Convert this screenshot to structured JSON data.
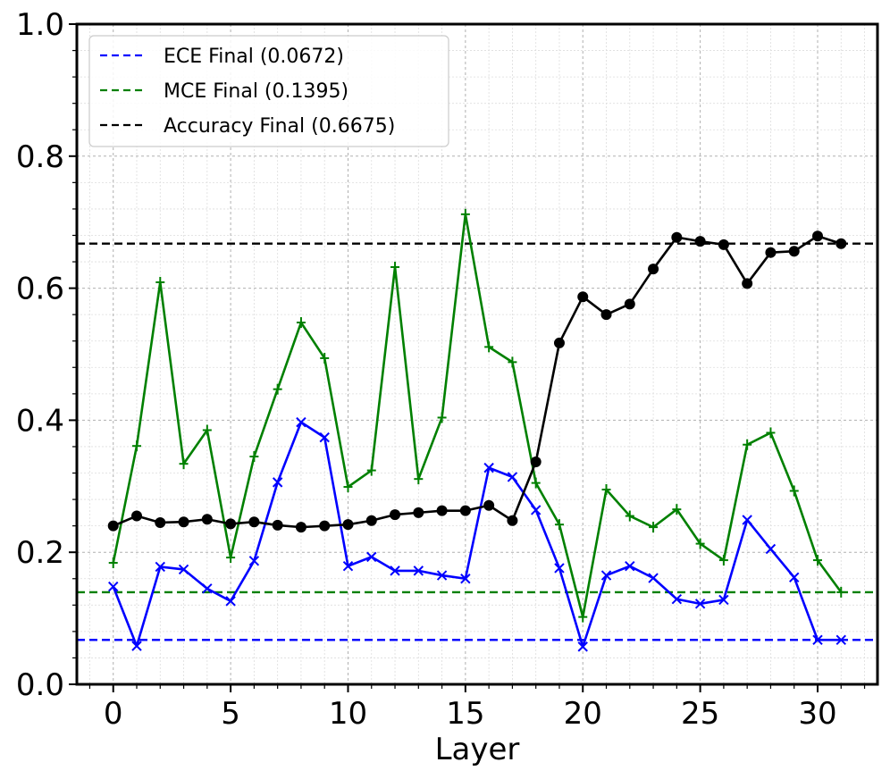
{
  "chart_data": {
    "type": "line",
    "title": "",
    "xlabel": "Layer",
    "ylabel": "",
    "xlim": [
      -1.55,
      32.55
    ],
    "ylim": [
      0.0,
      1.0
    ],
    "x_ticks": [
      0,
      5,
      10,
      15,
      20,
      25,
      30
    ],
    "y_ticks": [
      0.0,
      0.2,
      0.4,
      0.6,
      0.8,
      1.0
    ],
    "y_tick_labels": [
      "0.0",
      "0.2",
      "0.4",
      "0.6",
      "0.8",
      "1.0"
    ],
    "x_tick_labels": [
      "0",
      "5",
      "10",
      "15",
      "20",
      "25",
      "30"
    ],
    "grid": true,
    "legend_position": "top-left",
    "x": [
      0,
      1,
      2,
      3,
      4,
      5,
      6,
      7,
      8,
      9,
      10,
      11,
      12,
      13,
      14,
      15,
      16,
      17,
      18,
      19,
      20,
      21,
      22,
      23,
      24,
      25,
      26,
      27,
      28,
      29,
      30,
      31
    ],
    "series": [
      {
        "key": "ece",
        "color": "#0000ff",
        "marker": "x",
        "values": [
          0.148,
          0.058,
          0.178,
          0.174,
          0.145,
          0.126,
          0.187,
          0.306,
          0.397,
          0.374,
          0.179,
          0.193,
          0.172,
          0.172,
          0.165,
          0.16,
          0.328,
          0.314,
          0.264,
          0.176,
          0.057,
          0.165,
          0.179,
          0.161,
          0.129,
          0.122,
          0.128,
          0.249,
          0.205,
          0.162,
          0.0672,
          0.0672
        ]
      },
      {
        "key": "mce",
        "color": "#008000",
        "marker": "+",
        "values": [
          0.184,
          0.361,
          0.609,
          0.334,
          0.385,
          0.192,
          0.345,
          0.447,
          0.548,
          0.494,
          0.299,
          0.324,
          0.632,
          0.311,
          0.404,
          0.712,
          0.511,
          0.488,
          0.305,
          0.242,
          0.102,
          0.295,
          0.255,
          0.238,
          0.265,
          0.213,
          0.188,
          0.363,
          0.381,
          0.293,
          0.188,
          0.1395
        ]
      },
      {
        "key": "accuracy",
        "color": "#000000",
        "marker": "o",
        "values": [
          0.24,
          0.255,
          0.245,
          0.246,
          0.25,
          0.243,
          0.246,
          0.241,
          0.238,
          0.24,
          0.242,
          0.248,
          0.257,
          0.26,
          0.263,
          0.263,
          0.271,
          0.248,
          0.337,
          0.517,
          0.587,
          0.56,
          0.576,
          0.629,
          0.677,
          0.671,
          0.666,
          0.607,
          0.654,
          0.656,
          0.679,
          0.6675
        ]
      }
    ],
    "reference_lines": [
      {
        "key": "ece_final",
        "label": "ECE Final (0.0672)",
        "value": 0.0672,
        "color": "#0000ff",
        "style": "dashed"
      },
      {
        "key": "mce_final",
        "label": "MCE Final (0.1395)",
        "value": 0.1395,
        "color": "#008000",
        "style": "dashed"
      },
      {
        "key": "acc_final",
        "label": "Accuracy Final (0.6675)",
        "value": 0.6675,
        "color": "#000000",
        "style": "dashed"
      }
    ]
  }
}
